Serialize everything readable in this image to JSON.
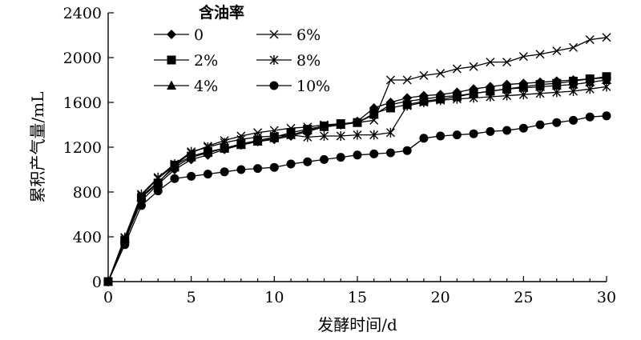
{
  "chart_data": {
    "type": "line",
    "title": "",
    "xlabel": "发酵时间/d",
    "ylabel": "累积产气量/mL",
    "xlim": [
      0,
      30
    ],
    "ylim": [
      0,
      2400
    ],
    "xticks": [
      0,
      5,
      10,
      15,
      20,
      25,
      30
    ],
    "yticks": [
      0,
      400,
      800,
      1200,
      1600,
      2000,
      2400
    ],
    "grid": false,
    "legend_title": "含油率",
    "legend_position": "top-left",
    "series": [
      {
        "name": "0",
        "marker": "diamond",
        "x": [
          0,
          1,
          2,
          3,
          4,
          5,
          6,
          7,
          8,
          9,
          10,
          11,
          12,
          13,
          14,
          15,
          16,
          17,
          18,
          19,
          20,
          21,
          22,
          23,
          24,
          25,
          26,
          27,
          28,
          29,
          30
        ],
        "values": [
          0,
          360,
          720,
          870,
          1000,
          1090,
          1130,
          1180,
          1220,
          1250,
          1270,
          1300,
          1340,
          1380,
          1400,
          1430,
          1550,
          1600,
          1640,
          1660,
          1670,
          1690,
          1720,
          1740,
          1760,
          1770,
          1780,
          1790,
          1800,
          1810,
          1820
        ]
      },
      {
        "name": "2%",
        "marker": "square",
        "x": [
          0,
          1,
          2,
          3,
          4,
          5,
          6,
          7,
          8,
          9,
          10,
          11,
          12,
          13,
          14,
          15,
          16,
          17,
          18,
          19,
          20,
          21,
          22,
          23,
          24,
          25,
          26,
          27,
          28,
          29,
          30
        ],
        "values": [
          0,
          370,
          750,
          880,
          1040,
          1120,
          1160,
          1190,
          1230,
          1260,
          1290,
          1330,
          1360,
          1390,
          1410,
          1420,
          1500,
          1550,
          1580,
          1610,
          1630,
          1650,
          1680,
          1700,
          1720,
          1740,
          1760,
          1770,
          1790,
          1810,
          1830
        ]
      },
      {
        "name": "4%",
        "marker": "triangle",
        "x": [
          0,
          1,
          2,
          3,
          4,
          5,
          6,
          7,
          8,
          9,
          10,
          11,
          12,
          13,
          14,
          15,
          16,
          17,
          18,
          19,
          20,
          21,
          22,
          23,
          24,
          25,
          26,
          27,
          28,
          29,
          30
        ],
        "values": [
          0,
          380,
          760,
          890,
          1020,
          1110,
          1150,
          1190,
          1220,
          1250,
          1280,
          1310,
          1350,
          1380,
          1400,
          1420,
          1490,
          1580,
          1610,
          1630,
          1650,
          1660,
          1680,
          1700,
          1720,
          1730,
          1740,
          1750,
          1760,
          1780,
          1800
        ]
      },
      {
        "name": "6%",
        "marker": "x",
        "x": [
          0,
          1,
          2,
          3,
          4,
          5,
          6,
          7,
          8,
          9,
          10,
          11,
          12,
          13,
          14,
          15,
          16,
          17,
          18,
          19,
          20,
          21,
          22,
          23,
          24,
          25,
          26,
          27,
          28,
          29,
          30
        ],
        "values": [
          0,
          390,
          770,
          920,
          1040,
          1150,
          1210,
          1260,
          1300,
          1330,
          1350,
          1370,
          1380,
          1400,
          1410,
          1420,
          1440,
          1800,
          1800,
          1840,
          1860,
          1900,
          1920,
          1960,
          1960,
          2010,
          2030,
          2060,
          2090,
          2160,
          2180
        ]
      },
      {
        "name": "8%",
        "marker": "asterisk",
        "x": [
          0,
          1,
          2,
          3,
          4,
          5,
          6,
          7,
          8,
          9,
          10,
          11,
          12,
          13,
          14,
          15,
          16,
          17,
          18,
          19,
          20,
          21,
          22,
          23,
          24,
          25,
          26,
          27,
          28,
          29,
          30
        ],
        "values": [
          0,
          395,
          780,
          930,
          1050,
          1160,
          1200,
          1240,
          1270,
          1290,
          1300,
          1310,
          1290,
          1300,
          1300,
          1310,
          1310,
          1330,
          1570,
          1600,
          1620,
          1630,
          1640,
          1650,
          1660,
          1670,
          1680,
          1690,
          1700,
          1720,
          1740
        ]
      },
      {
        "name": "10%",
        "marker": "circle",
        "x": [
          0,
          1,
          2,
          3,
          4,
          5,
          6,
          7,
          8,
          9,
          10,
          11,
          12,
          13,
          14,
          15,
          16,
          17,
          18,
          19,
          20,
          21,
          22,
          23,
          24,
          25,
          26,
          27,
          28,
          29,
          30
        ],
        "values": [
          0,
          330,
          680,
          810,
          920,
          940,
          960,
          980,
          1000,
          1010,
          1020,
          1050,
          1070,
          1090,
          1110,
          1130,
          1140,
          1150,
          1170,
          1280,
          1300,
          1310,
          1320,
          1340,
          1350,
          1370,
          1400,
          1420,
          1440,
          1470,
          1480
        ]
      }
    ]
  }
}
